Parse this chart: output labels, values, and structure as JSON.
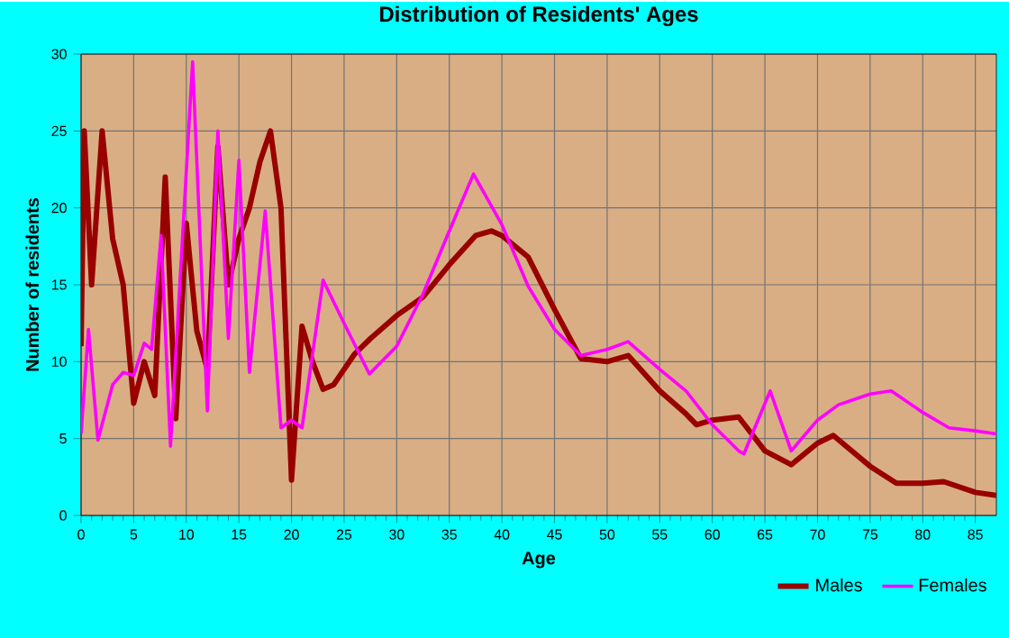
{
  "chart_data": {
    "type": "line",
    "title": "Distribution of Residents' Ages",
    "xlabel": "Age",
    "ylabel": "Number of residents",
    "xlim": [
      0,
      87
    ],
    "xticks": [
      0,
      5,
      10,
      15,
      20,
      25,
      30,
      35,
      40,
      45,
      50,
      55,
      60,
      65,
      70,
      75,
      80,
      85
    ],
    "ylim": [
      0,
      30
    ],
    "yticks": [
      0,
      5,
      10,
      15,
      20,
      25,
      30
    ],
    "grid": true,
    "legend": "bottom right",
    "marker": "none",
    "line_style": "solid",
    "series": [
      {
        "name": "Males",
        "color": "#990000",
        "x": [
          0,
          0.3,
          1,
          2,
          3,
          4,
          5,
          6,
          7,
          8,
          9,
          10,
          11,
          12,
          13,
          14,
          15,
          16,
          17,
          18,
          19,
          20,
          21,
          22,
          23,
          24,
          25,
          26,
          27.5,
          30,
          32.5,
          35,
          37.5,
          39,
          40,
          42.5,
          45,
          47.5,
          50,
          52,
          55,
          57.5,
          58.5,
          60,
          62.5,
          65,
          67.5,
          70,
          71.5,
          75,
          77.5,
          80,
          82,
          85,
          87
        ],
        "values": [
          11,
          25,
          15,
          25,
          18,
          15,
          7.3,
          10,
          7.8,
          22,
          6.3,
          19,
          12,
          9.5,
          24,
          15,
          18,
          20,
          23,
          25,
          20,
          2.3,
          12.3,
          10,
          8.2,
          8.5,
          9.5,
          10.5,
          11.5,
          13,
          14.2,
          16.3,
          18.2,
          18.5,
          18.2,
          16.8,
          13.4,
          10.2,
          10,
          10.4,
          8.1,
          6.6,
          5.9,
          6.2,
          6.4,
          4.2,
          3.3,
          4.7,
          5.2,
          3.2,
          2.1,
          2.1,
          2.2,
          1.5,
          1.3
        ]
      },
      {
        "name": "Females",
        "color": "#ff00ff",
        "x": [
          0,
          0.7,
          1.6,
          3,
          4,
          5,
          6,
          6.7,
          7.6,
          8.5,
          10.6,
          12,
          13,
          14,
          15,
          16,
          17.5,
          19,
          20,
          21,
          23,
          25,
          27.4,
          30,
          32.5,
          35,
          37.3,
          40,
          42.5,
          45,
          47.5,
          50,
          52,
          55,
          57.5,
          60,
          62.5,
          63,
          65.5,
          67.5,
          70,
          72,
          75,
          77,
          80,
          82.5,
          85,
          87
        ],
        "values": [
          5.3,
          12.1,
          4.9,
          8.5,
          9.3,
          9.1,
          11.2,
          10.8,
          18.2,
          4.5,
          29.5,
          6.8,
          25,
          11.5,
          23.1,
          9.3,
          19.8,
          5.7,
          6.2,
          5.7,
          15.3,
          12.5,
          9.2,
          11,
          14.4,
          18.5,
          22.2,
          18.9,
          14.9,
          12.1,
          10.4,
          10.8,
          11.3,
          9.5,
          8.1,
          5.9,
          4.2,
          4,
          8.1,
          4.2,
          6.2,
          7.2,
          7.9,
          8.1,
          6.7,
          5.7,
          5.5,
          5.3
        ]
      }
    ]
  }
}
